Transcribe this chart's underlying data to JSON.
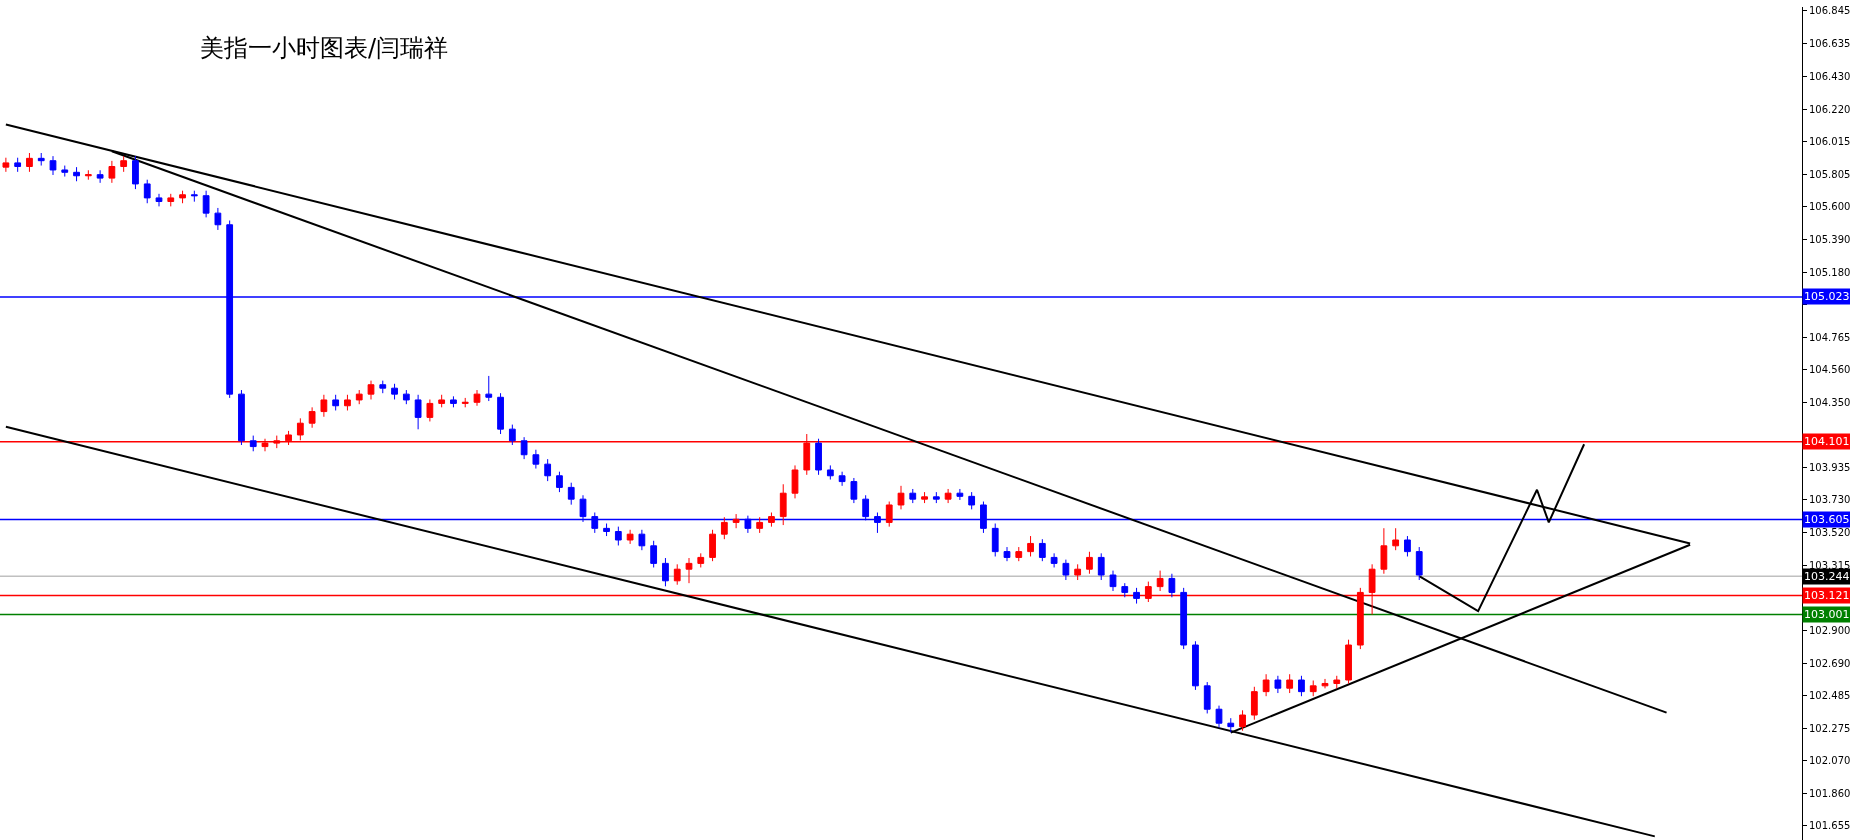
{
  "chart_data": {
    "type": "candlestick",
    "title": "美指一小时图表/闫瑞祥",
    "categories": [
      null,
      null,
      null,
      null,
      null,
      null,
      null,
      null,
      null,
      null,
      null,
      null,
      null,
      null,
      null,
      null,
      null,
      null,
      null,
      null,
      null,
      null,
      null,
      null,
      null,
      null,
      null,
      null,
      null,
      null,
      null,
      null,
      null,
      null,
      null,
      null,
      null,
      null,
      null,
      null,
      null,
      null,
      null,
      null,
      null,
      null,
      null,
      null,
      null,
      null,
      null,
      null,
      null,
      null,
      null,
      null,
      null,
      null,
      null,
      null,
      null,
      null,
      null,
      null,
      null,
      null,
      null,
      null,
      null,
      null,
      null,
      null,
      null,
      null,
      null,
      null,
      null,
      null,
      null,
      null,
      null,
      null,
      null,
      null,
      null,
      null,
      null,
      null,
      null,
      null,
      null,
      null,
      null,
      null,
      null,
      null,
      null,
      null,
      null,
      null,
      null,
      null,
      null,
      null,
      null,
      null,
      null,
      null,
      null,
      null,
      null,
      null,
      null,
      null,
      null,
      null,
      null,
      null,
      null,
      null,
      null,
      null,
      null,
      null,
      null,
      null,
      null,
      null,
      null,
      null,
      null,
      null,
      null,
      null,
      null,
      null,
      null,
      null,
      null,
      null,
      null,
      null,
      null,
      null,
      null,
      null,
      null,
      null,
      null,
      null,
      null,
      null,
      null
    ],
    "series": [
      {
        "colors": [
          "#ff0000",
          "#0000ff",
          "#ff0000",
          "#0000ff",
          "#0000ff",
          "#0000ff",
          "#0000ff",
          "#ff0000",
          "#0000ff",
          "#ff0000",
          "#ff0000",
          "#0000ff",
          "#0000ff",
          "#0000ff",
          "#ff0000",
          "#ff0000",
          "#0000ff",
          "#0000ff",
          "#0000ff",
          "#0000ff",
          "#0000ff",
          "#0000ff",
          "#ff0000",
          "#ff0000",
          "#ff0000",
          "#ff0000",
          "#ff0000",
          "#ff0000",
          "#0000ff",
          "#ff0000",
          "#ff0000",
          "#ff0000",
          "#0000ff",
          "#0000ff",
          "#0000ff",
          "#0000ff",
          "#ff0000",
          "#ff0000",
          "#0000ff",
          "#ff0000",
          "#ff0000",
          "#0000ff",
          "#0000ff",
          "#0000ff",
          "#0000ff",
          "#0000ff",
          "#0000ff",
          "#0000ff",
          "#0000ff",
          "#0000ff",
          "#0000ff",
          "#0000ff",
          "#0000ff",
          "#ff0000",
          "#0000ff",
          "#0000ff",
          "#0000ff",
          "#ff0000",
          "#ff0000",
          "#ff0000",
          "#ff0000",
          "#ff0000",
          "#ff0000",
          "#0000ff",
          "#ff0000",
          "#ff0000",
          "#ff0000",
          "#ff0000",
          "#ff0000",
          "#0000ff",
          "#0000ff",
          "#0000ff",
          "#0000ff",
          "#0000ff",
          "#0000ff",
          "#ff0000",
          "#ff0000",
          "#0000ff",
          "#ff0000",
          "#0000ff",
          "#ff0000",
          "#0000ff",
          "#0000ff",
          "#0000ff",
          "#0000ff",
          "#0000ff",
          "#ff0000",
          "#ff0000",
          "#0000ff",
          "#0000ff",
          "#0000ff",
          "#ff0000",
          "#ff0000",
          "#0000ff",
          "#0000ff",
          "#0000ff",
          "#0000ff",
          "#ff0000",
          "#ff0000",
          "#0000ff",
          "#0000ff",
          "#0000ff",
          "#0000ff",
          "#0000ff",
          "#0000ff",
          "#ff0000",
          "#ff0000",
          "#ff0000",
          "#0000ff",
          "#ff0000",
          "#0000ff",
          "#ff0000",
          "#ff0000",
          "#ff0000",
          "#ff0000",
          "#ff0000",
          "#ff0000",
          "#ff0000",
          "#ff0000",
          "#0000ff",
          "#0000ff",
          null,
          null,
          null,
          null,
          null,
          null,
          null,
          null,
          null,
          null,
          null,
          null,
          null,
          null,
          null,
          null,
          null,
          null,
          null,
          null,
          null,
          null,
          null,
          null,
          null,
          null,
          null,
          null,
          null,
          null,
          null,
          null
        ],
        "ohlc": [
          [
            105.85,
            105.91,
            105.82,
            105.877
          ],
          [
            105.877,
            105.91,
            105.82,
            105.854
          ],
          [
            105.854,
            105.94,
            105.82,
            105.906
          ],
          [
            105.906,
            105.94,
            105.86,
            105.891
          ],
          [
            105.891,
            105.92,
            105.8,
            105.832
          ],
          [
            105.832,
            105.86,
            105.79,
            105.817
          ],
          [
            105.817,
            105.85,
            105.76,
            105.795
          ],
          [
            105.795,
            105.83,
            105.77,
            105.802
          ],
          [
            105.802,
            105.83,
            105.75,
            105.78
          ],
          [
            105.78,
            105.89,
            105.75,
            105.854
          ],
          [
            105.854,
            105.92,
            105.82,
            105.891
          ],
          [
            105.891,
            105.92,
            105.71,
            105.743
          ],
          [
            105.743,
            105.77,
            105.62,
            105.654
          ],
          [
            105.654,
            105.68,
            105.6,
            105.631
          ],
          [
            105.631,
            105.68,
            105.6,
            105.654
          ],
          [
            105.654,
            105.7,
            105.62,
            105.674
          ],
          [
            105.674,
            105.7,
            105.63,
            105.668
          ],
          [
            105.668,
            105.7,
            105.53,
            105.557
          ],
          [
            105.557,
            105.59,
            105.45,
            105.483
          ],
          [
            105.483,
            105.51,
            104.38,
            104.404
          ],
          [
            104.404,
            104.43,
            104.08,
            104.107
          ],
          [
            104.107,
            104.14,
            104.04,
            104.07
          ],
          [
            104.07,
            104.12,
            104.04,
            104.092
          ],
          [
            104.092,
            104.14,
            104.06,
            104.107
          ],
          [
            104.107,
            104.17,
            104.08,
            104.144
          ],
          [
            104.144,
            104.25,
            104.11,
            104.219
          ],
          [
            104.219,
            104.32,
            104.19,
            104.293
          ],
          [
            104.293,
            104.4,
            104.26,
            104.367
          ],
          [
            104.367,
            104.4,
            104.3,
            104.33
          ],
          [
            104.33,
            104.4,
            104.3,
            104.367
          ],
          [
            104.367,
            104.43,
            104.34,
            104.404
          ],
          [
            104.404,
            104.49,
            104.37,
            104.464
          ],
          [
            104.464,
            104.49,
            104.41,
            104.442
          ],
          [
            104.442,
            104.47,
            104.37,
            104.404
          ],
          [
            104.404,
            104.43,
            104.34,
            104.367
          ],
          [
            104.367,
            104.4,
            104.18,
            104.256
          ],
          [
            104.256,
            104.37,
            104.23,
            104.345
          ],
          [
            104.345,
            104.4,
            104.32,
            104.367
          ],
          [
            104.367,
            104.39,
            104.32,
            104.345
          ],
          [
            104.345,
            104.38,
            104.32,
            104.352
          ],
          [
            104.352,
            104.43,
            104.33,
            104.404
          ],
          [
            104.404,
            104.52,
            104.36,
            104.384
          ],
          [
            104.384,
            104.41,
            104.15,
            104.181
          ],
          [
            104.181,
            104.21,
            104.08,
            104.107
          ],
          [
            104.107,
            104.13,
            103.99,
            104.018
          ],
          [
            104.018,
            104.05,
            103.93,
            103.958
          ],
          [
            103.958,
            103.99,
            103.85,
            103.884
          ],
          [
            103.884,
            103.91,
            103.78,
            103.81
          ],
          [
            103.81,
            103.84,
            103.7,
            103.735
          ],
          [
            103.735,
            103.76,
            103.59,
            103.624
          ],
          [
            103.624,
            103.65,
            103.52,
            103.549
          ],
          [
            103.549,
            103.58,
            103.5,
            103.529
          ],
          [
            103.529,
            103.56,
            103.44,
            103.475
          ],
          [
            103.475,
            103.54,
            103.45,
            103.512
          ],
          [
            103.512,
            103.54,
            103.41,
            103.438
          ],
          [
            103.438,
            103.47,
            103.3,
            103.326
          ],
          [
            103.326,
            103.36,
            103.18,
            103.215
          ],
          [
            103.215,
            103.32,
            103.19,
            103.289
          ],
          [
            103.289,
            103.36,
            103.2,
            103.326
          ],
          [
            103.326,
            103.39,
            103.3,
            103.364
          ],
          [
            103.364,
            103.54,
            103.34,
            103.512
          ],
          [
            103.512,
            103.62,
            103.48,
            103.587
          ],
          [
            103.587,
            103.64,
            103.55,
            103.607
          ],
          [
            103.607,
            103.63,
            103.52,
            103.549
          ],
          [
            103.549,
            103.62,
            103.52,
            103.587
          ],
          [
            103.587,
            103.65,
            103.56,
            103.624
          ],
          [
            103.624,
            103.83,
            103.57,
            103.773
          ],
          [
            103.773,
            103.95,
            103.74,
            103.921
          ],
          [
            103.921,
            104.15,
            103.89,
            104.092
          ],
          [
            104.092,
            104.12,
            103.89,
            103.921
          ],
          [
            103.921,
            103.95,
            103.86,
            103.884
          ],
          [
            103.884,
            103.91,
            103.82,
            103.847
          ],
          [
            103.847,
            103.87,
            103.71,
            103.735
          ],
          [
            103.735,
            103.76,
            103.6,
            103.624
          ],
          [
            103.624,
            103.65,
            103.52,
            103.587
          ],
          [
            103.587,
            103.72,
            103.56,
            103.698
          ],
          [
            103.698,
            103.82,
            103.67,
            103.773
          ],
          [
            103.773,
            103.8,
            103.71,
            103.735
          ],
          [
            103.735,
            103.78,
            103.71,
            103.75
          ],
          [
            103.75,
            103.78,
            103.71,
            103.735
          ],
          [
            103.735,
            103.8,
            103.71,
            103.773
          ],
          [
            103.773,
            103.8,
            103.73,
            103.753
          ],
          [
            103.753,
            103.78,
            103.67,
            103.698
          ],
          [
            103.698,
            103.72,
            103.52,
            103.549
          ],
          [
            103.549,
            103.58,
            103.37,
            103.401
          ],
          [
            103.401,
            103.43,
            103.34,
            103.364
          ],
          [
            103.364,
            103.43,
            103.34,
            103.401
          ],
          [
            103.401,
            103.5,
            103.37,
            103.453
          ],
          [
            103.453,
            103.48,
            103.34,
            103.364
          ],
          [
            103.364,
            103.39,
            103.3,
            103.326
          ],
          [
            103.326,
            103.35,
            103.22,
            103.252
          ],
          [
            103.252,
            103.32,
            103.22,
            103.289
          ],
          [
            103.289,
            103.4,
            103.26,
            103.364
          ],
          [
            103.364,
            103.39,
            103.22,
            103.252
          ],
          [
            103.252,
            103.28,
            103.15,
            103.178
          ],
          [
            103.178,
            103.2,
            103.11,
            103.141
          ],
          [
            103.141,
            103.17,
            103.07,
            103.103
          ],
          [
            103.103,
            103.21,
            103.08,
            103.178
          ],
          [
            103.178,
            103.28,
            103.15,
            103.23
          ],
          [
            103.23,
            103.26,
            103.11,
            103.141
          ],
          [
            103.141,
            103.17,
            102.78,
            102.806
          ],
          [
            102.806,
            102.83,
            102.52,
            102.546
          ],
          [
            102.546,
            102.57,
            102.37,
            102.397
          ],
          [
            102.397,
            102.42,
            102.28,
            102.308
          ],
          [
            102.308,
            102.34,
            102.25,
            102.286
          ],
          [
            102.286,
            102.39,
            102.26,
            102.36
          ],
          [
            102.36,
            102.54,
            102.33,
            102.509
          ],
          [
            102.509,
            102.62,
            102.48,
            102.583
          ],
          [
            102.583,
            102.61,
            102.5,
            102.531
          ],
          [
            102.531,
            102.62,
            102.5,
            102.583
          ],
          [
            102.583,
            102.61,
            102.48,
            102.509
          ],
          [
            102.509,
            102.58,
            102.48,
            102.546
          ],
          [
            102.546,
            102.59,
            102.53,
            102.561
          ],
          [
            102.561,
            102.61,
            102.53,
            102.583
          ],
          [
            102.583,
            102.84,
            102.56,
            102.806
          ],
          [
            102.806,
            103.17,
            102.78,
            103.141
          ],
          [
            103.141,
            103.32,
            103.0,
            103.289
          ],
          [
            103.289,
            103.55,
            103.26,
            103.438
          ],
          [
            103.438,
            103.55,
            103.41,
            103.475
          ],
          [
            103.475,
            103.5,
            103.37,
            103.401
          ],
          [
            103.401,
            103.43,
            103.22,
            103.252
          ],
          null,
          null,
          null,
          null,
          null,
          null,
          null,
          null,
          null,
          null,
          null,
          null,
          null,
          null,
          null,
          null,
          null,
          null,
          null,
          null,
          null,
          null,
          null,
          null,
          null,
          null,
          null,
          null,
          null,
          null,
          null,
          null
        ]
      },
      {
        "type": "line",
        "color": "#000000",
        "values": [
          106.122,
          null,
          null,
          null,
          null,
          null,
          null,
          null,
          null,
          null,
          null,
          null,
          null,
          null,
          null,
          null,
          null,
          null,
          null,
          null,
          null,
          null,
          null,
          null,
          null,
          null,
          null,
          null,
          null,
          null,
          null,
          null,
          null,
          null,
          null,
          null,
          null,
          null,
          null,
          null,
          null,
          null,
          null,
          null,
          null,
          null,
          null,
          null,
          null,
          null,
          null,
          null,
          null,
          null,
          null,
          null,
          null,
          null,
          null,
          null,
          null,
          null,
          null,
          null,
          null,
          null,
          null,
          null,
          null,
          null,
          null,
          null,
          null,
          null,
          null,
          null,
          null,
          null,
          null,
          null,
          null,
          null,
          null,
          null,
          null,
          null,
          null,
          null,
          null,
          null,
          null,
          null,
          null,
          null,
          null,
          null,
          null,
          null,
          null,
          null,
          null,
          null,
          null,
          null,
          null,
          null,
          null,
          null,
          null,
          null,
          null,
          null,
          null,
          null,
          null,
          null,
          null,
          null,
          null,
          null,
          null,
          null,
          null,
          null,
          null,
          null,
          null,
          null,
          null,
          null,
          null,
          null,
          null,
          null,
          null,
          null,
          null,
          null,
          null,
          null,
          null,
          null,
          null,
          103.453,
          null,
          null,
          null,
          null,
          null,
          null,
          null,
          null,
          null
        ]
      },
      {
        "type": "line",
        "color": "#000000",
        "values": [
          null,
          null,
          null,
          null,
          null,
          null,
          null,
          null,
          null,
          105.951,
          null,
          null,
          null,
          null,
          null,
          null,
          null,
          null,
          null,
          null,
          null,
          null,
          null,
          null,
          null,
          null,
          null,
          null,
          null,
          null,
          null,
          null,
          null,
          null,
          null,
          null,
          null,
          null,
          null,
          null,
          null,
          null,
          null,
          null,
          null,
          null,
          null,
          null,
          null,
          null,
          null,
          null,
          null,
          null,
          null,
          null,
          null,
          null,
          null,
          null,
          null,
          null,
          null,
          null,
          null,
          null,
          null,
          null,
          null,
          null,
          null,
          null,
          null,
          null,
          null,
          null,
          null,
          null,
          null,
          null,
          null,
          null,
          null,
          null,
          null,
          null,
          null,
          null,
          null,
          null,
          null,
          null,
          null,
          null,
          null,
          null,
          null,
          null,
          null,
          null,
          null,
          null,
          null,
          null,
          null,
          null,
          null,
          null,
          null,
          null,
          null,
          null,
          null,
          null,
          null,
          null,
          null,
          null,
          null,
          null,
          null,
          null,
          null,
          null,
          null,
          null,
          null,
          null,
          null,
          null,
          null,
          null,
          null,
          null,
          null,
          null,
          null,
          null,
          null,
          null,
          null,
          102.375,
          null,
          null,
          null,
          null,
          null,
          null,
          null,
          null,
          null,
          null,
          null
        ]
      },
      {
        "type": "line",
        "color": "#000000",
        "values": [
          104.196,
          null,
          null,
          null,
          null,
          null,
          null,
          null,
          null,
          null,
          null,
          null,
          null,
          null,
          null,
          null,
          null,
          null,
          null,
          null,
          null,
          null,
          null,
          null,
          null,
          null,
          null,
          null,
          null,
          null,
          null,
          null,
          null,
          null,
          null,
          null,
          null,
          null,
          null,
          null,
          null,
          null,
          null,
          null,
          null,
          null,
          null,
          null,
          null,
          null,
          null,
          null,
          null,
          null,
          null,
          null,
          null,
          null,
          null,
          null,
          null,
          null,
          null,
          null,
          null,
          null,
          null,
          null,
          null,
          null,
          null,
          null,
          null,
          null,
          null,
          null,
          null,
          null,
          null,
          null,
          null,
          null,
          null,
          null,
          null,
          null,
          null,
          null,
          null,
          null,
          null,
          null,
          null,
          null,
          null,
          null,
          null,
          null,
          null,
          null,
          null,
          null,
          null,
          null,
          null,
          null,
          null,
          null,
          null,
          null,
          null,
          null,
          null,
          null,
          null,
          null,
          null,
          null,
          null,
          null,
          null,
          null,
          null,
          null,
          null,
          null,
          null,
          null,
          null,
          null,
          null,
          null,
          null,
          null,
          null,
          null,
          null,
          null,
          null,
          null,
          101.587,
          null,
          null,
          null,
          null,
          null,
          null,
          null,
          null,
          null,
          null,
          null,
          null
        ]
      },
      {
        "type": "line",
        "color": "#000000",
        "values": [
          null,
          null,
          null,
          null,
          null,
          null,
          null,
          null,
          null,
          null,
          null,
          null,
          null,
          null,
          null,
          null,
          null,
          null,
          null,
          null,
          null,
          null,
          null,
          null,
          null,
          null,
          null,
          null,
          null,
          null,
          null,
          null,
          null,
          null,
          null,
          null,
          null,
          null,
          null,
          null,
          null,
          null,
          null,
          null,
          null,
          null,
          null,
          null,
          null,
          null,
          null,
          null,
          null,
          null,
          null,
          null,
          null,
          null,
          null,
          null,
          null,
          null,
          null,
          null,
          null,
          null,
          null,
          null,
          null,
          null,
          null,
          null,
          null,
          null,
          null,
          null,
          null,
          null,
          null,
          null,
          null,
          null,
          null,
          null,
          null,
          null,
          null,
          null,
          null,
          null,
          null,
          null,
          null,
          null,
          null,
          null,
          null,
          null,
          null,
          null,
          null,
          null,
          null,
          null,
          102.248,
          null,
          null,
          null,
          null,
          null,
          null,
          null,
          null,
          null,
          null,
          null,
          null,
          null,
          null,
          null,
          null,
          null,
          null,
          null,
          null,
          null,
          null,
          null,
          null,
          null,
          null,
          null,
          null,
          null,
          null,
          null,
          null,
          null,
          null,
          null,
          null,
          null,
          null,
          103.445,
          null,
          null,
          null,
          null,
          null,
          null,
          null,
          null,
          null
        ]
      },
      {
        "type": "line",
        "color": "#000000",
        "values": [
          null,
          null,
          null,
          null,
          null,
          null,
          null,
          null,
          null,
          null,
          null,
          null,
          null,
          null,
          null,
          null,
          null,
          null,
          null,
          null,
          null,
          null,
          null,
          null,
          null,
          null,
          null,
          null,
          null,
          null,
          null,
          null,
          null,
          null,
          null,
          null,
          null,
          null,
          null,
          null,
          null,
          null,
          null,
          null,
          null,
          null,
          null,
          null,
          null,
          null,
          null,
          null,
          null,
          null,
          null,
          null,
          null,
          null,
          null,
          null,
          null,
          null,
          null,
          null,
          null,
          null,
          null,
          null,
          null,
          null,
          null,
          null,
          null,
          null,
          null,
          null,
          null,
          null,
          null,
          null,
          null,
          null,
          null,
          null,
          null,
          null,
          null,
          null,
          null,
          null,
          null,
          null,
          null,
          null,
          null,
          null,
          null,
          null,
          null,
          null,
          null,
          null,
          null,
          null,
          null,
          null,
          null,
          null,
          null,
          null,
          null,
          null,
          null,
          null,
          null,
          null,
          null,
          null,
          null,
          null,
          103.245,
          null,
          null,
          null,
          null,
          103.022,
          null,
          null,
          null,
          null,
          103.795,
          103.587,
          null,
          null,
          104.085,
          null,
          null,
          null,
          null,
          null,
          null,
          null,
          null,
          null,
          null,
          null,
          null,
          null,
          null,
          null,
          null,
          null,
          null
        ]
      }
    ],
    "ylim": [
      101.564,
      106.87
    ],
    "yticks": [
      {
        "value": 101.655,
        "label": "101.655"
      },
      {
        "value": 101.86,
        "label": "101.860"
      },
      {
        "value": 102.07,
        "label": "102.070"
      },
      {
        "value": 102.275,
        "label": "102.275"
      },
      {
        "value": 102.485,
        "label": "102.485"
      },
      {
        "value": 102.69,
        "label": "102.690"
      },
      {
        "value": 102.9,
        "label": "102.900"
      },
      {
        "value": 103.315,
        "label": "103.315"
      },
      {
        "value": 103.52,
        "label": "103.520"
      },
      {
        "value": 103.73,
        "label": "103.730"
      },
      {
        "value": 103.935,
        "label": "103.935"
      },
      {
        "value": 104.145,
        "label": null
      },
      {
        "value": 104.35,
        "label": "104.350"
      },
      {
        "value": 104.56,
        "label": "104.560"
      },
      {
        "value": 104.765,
        "label": "104.765"
      },
      {
        "value": 104.975,
        "label": null
      },
      {
        "value": 105.18,
        "label": "105.180"
      },
      {
        "value": 105.39,
        "label": "105.390"
      },
      {
        "value": 105.6,
        "label": "105.600"
      },
      {
        "value": 105.805,
        "label": "105.805"
      },
      {
        "value": 106.015,
        "label": "106.015"
      },
      {
        "value": 106.22,
        "label": "106.220"
      },
      {
        "value": 106.43,
        "label": "106.430"
      },
      {
        "value": 106.635,
        "label": "106.635"
      },
      {
        "value": 106.845,
        "label": "106.845"
      }
    ],
    "ref_lines": [
      {
        "axis": "y",
        "value": 105.023,
        "label": "105.023",
        "color": "#0000ff"
      },
      {
        "axis": "y",
        "value": 104.101,
        "label": "104.101",
        "color": "#ff0000"
      },
      {
        "axis": "y",
        "value": 103.605,
        "label": "103.605",
        "color": "#0000ff"
      },
      {
        "axis": "y",
        "value": 103.244,
        "label": "103.244",
        "color": "#c0c0c0"
      },
      {
        "axis": "y",
        "value": 103.121,
        "label": "103.121",
        "color": "#ff0000"
      },
      {
        "axis": "y",
        "value": 103.001,
        "label": "103.001",
        "color": "#008000"
      }
    ],
    "tick_labels": "y",
    "grid": false
  }
}
